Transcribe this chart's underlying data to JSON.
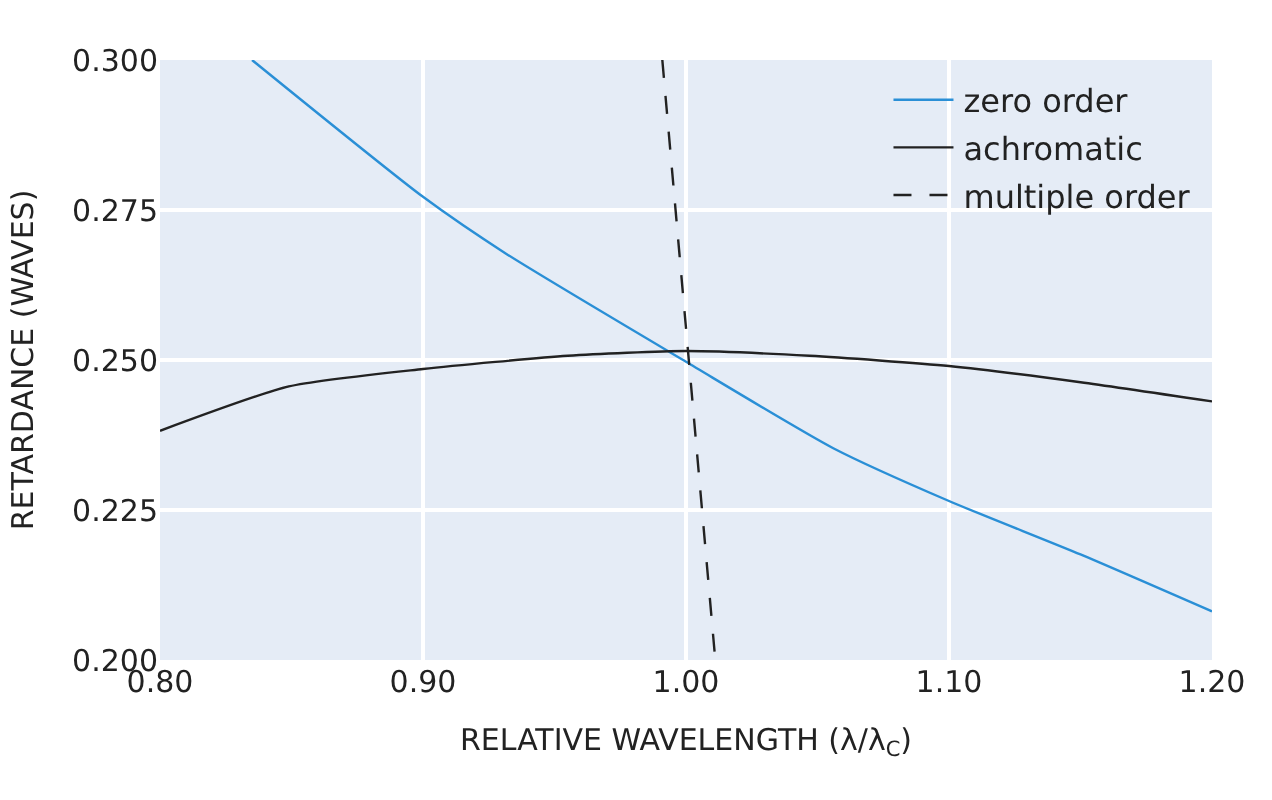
{
  "chart_data": {
    "type": "line",
    "xlabel": "RELATIVE WAVELENGTH (λ/λ$_{C}$)",
    "ylabel": "RETARDANCE (WAVES)",
    "xlim": [
      0.8,
      1.2
    ],
    "xticks": [
      {
        "value": 0.8,
        "label": "0.80"
      },
      {
        "value": 0.9,
        "label": "0.90"
      },
      {
        "value": 1.0,
        "label": "1.00"
      },
      {
        "value": 1.1,
        "label": "1.10"
      },
      {
        "value": 1.2,
        "label": "1.20"
      }
    ],
    "ylim": [
      0.2,
      0.3
    ],
    "yticks": [
      {
        "value": 0.2,
        "label": "0.200"
      },
      {
        "value": 0.225,
        "label": "0.225"
      },
      {
        "value": 0.25,
        "label": "0.250"
      },
      {
        "value": 0.275,
        "label": "0.275"
      },
      {
        "value": 0.3,
        "label": "0.300"
      }
    ],
    "grid": true,
    "legend": "top right",
    "marker": "none",
    "series": [
      {
        "name": "zero order",
        "color": "#2a8fd6",
        "line_style": "solid",
        "x": [
          0.835,
          0.9,
          0.932,
          1.0,
          1.056,
          1.1,
          1.15,
          1.2
        ],
        "values": [
          0.3,
          0.2772,
          0.2676,
          0.2497,
          0.2353,
          0.2265,
          0.2176,
          0.2081
        ]
      },
      {
        "name": "achromatic",
        "color": "#222222",
        "line_style": "solid",
        "x": [
          0.8,
          0.849,
          0.9,
          0.955,
          1.0,
          1.047,
          1.1,
          1.15,
          1.2
        ],
        "values": [
          0.2382,
          0.2456,
          0.2485,
          0.2507,
          0.2515,
          0.2507,
          0.249,
          0.2463,
          0.2431
        ]
      },
      {
        "name": "multiple order",
        "color": "#222222",
        "line_style": "dashed",
        "x": [
          0.991,
          1.011
        ],
        "values": [
          0.3,
          0.2007
        ]
      }
    ]
  }
}
